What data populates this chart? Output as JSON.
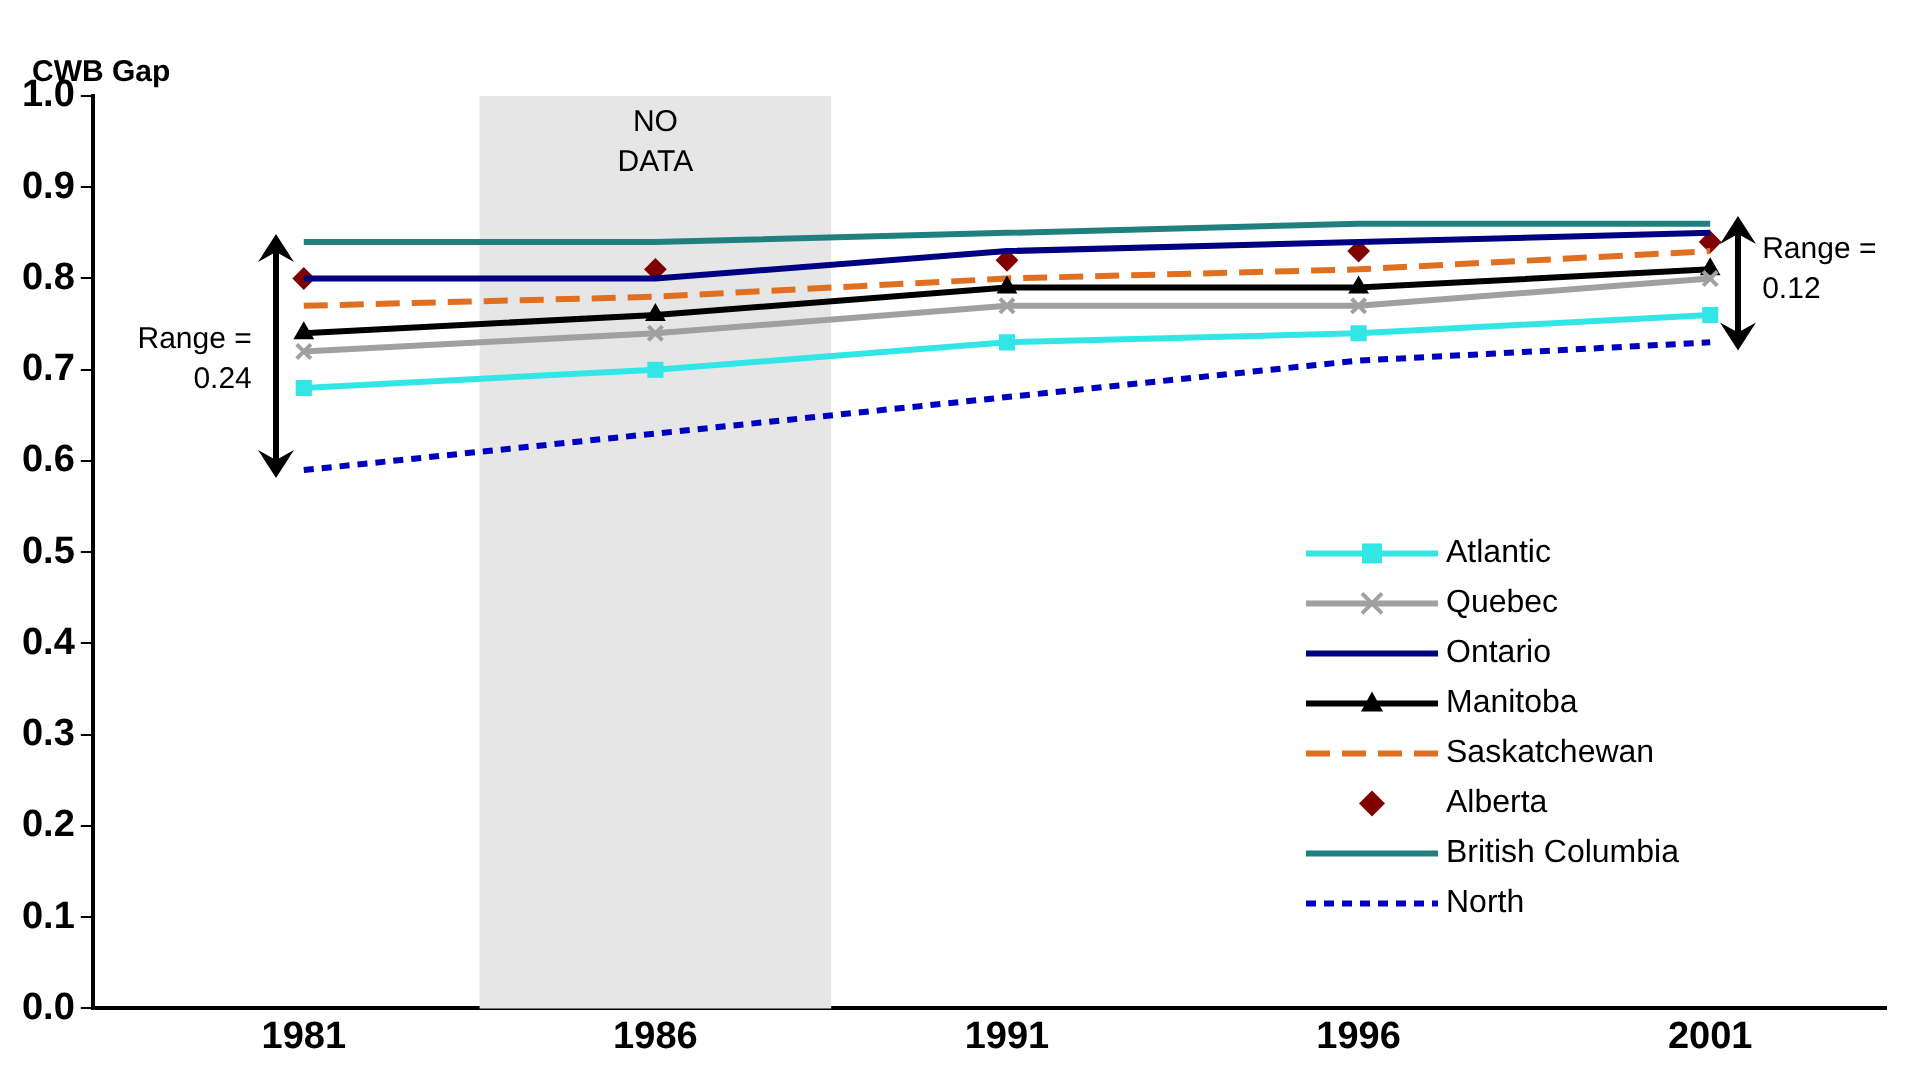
{
  "chart_data": {
    "type": "line",
    "ylabel": "CWB Gap",
    "x": [
      1981,
      1986,
      1991,
      1996,
      2001
    ],
    "xlim": [
      1978,
      2003.5
    ],
    "xticks": [
      1981,
      1986,
      1991,
      1996,
      2001
    ],
    "ylim": [
      0,
      1
    ],
    "yticks": [
      {
        "value": 0,
        "label": "0.0"
      },
      0.1,
      0.2,
      0.3,
      0.4,
      0.5,
      0.6,
      0.7,
      0.8,
      0.9,
      {
        "value": 1,
        "label": "1.0"
      }
    ],
    "grid": false,
    "legend": "bottom right",
    "series": [
      {
        "name": "Atlantic",
        "color": "#33e6e6",
        "marker": "square",
        "line_style": "solid",
        "values": [
          0.68,
          0.7,
          0.73,
          0.74,
          0.76
        ]
      },
      {
        "name": "Quebec",
        "color": "#a0a0a0",
        "marker": "cross",
        "line_style": "solid",
        "values": [
          0.72,
          0.74,
          0.77,
          0.77,
          0.8
        ]
      },
      {
        "name": "Ontario",
        "color": "#000080",
        "marker": "none",
        "line_style": "solid",
        "values": [
          0.8,
          0.8,
          0.83,
          0.84,
          0.85
        ]
      },
      {
        "name": "Manitoba",
        "color": "#000000",
        "marker": "triangle",
        "line_style": "solid",
        "values": [
          0.74,
          0.76,
          0.79,
          0.79,
          0.81
        ]
      },
      {
        "name": "Saskatchewan",
        "color": "#e07020",
        "marker": "none",
        "line_style": "dashed",
        "values": [
          0.77,
          0.78,
          0.8,
          0.81,
          0.83
        ]
      },
      {
        "name": "Alberta",
        "type": "scatter",
        "color": "#800000",
        "marker": "diamond",
        "values": [
          0.8,
          0.81,
          0.82,
          0.83,
          0.84
        ]
      },
      {
        "name": "British Columbia",
        "color": "#208080",
        "marker": "none",
        "line_style": "solid",
        "values": [
          0.84,
          0.84,
          0.85,
          0.86,
          0.86
        ]
      },
      {
        "name": "North",
        "color": "#0000c0",
        "marker": "none",
        "line_style": "dotted",
        "values": [
          0.59,
          0.63,
          0.67,
          0.71,
          0.73
        ]
      }
    ],
    "bands": [
      {
        "axis": "x",
        "from": 1983.5,
        "to": 1988.5,
        "label": "NO DATA",
        "color": "#e6e6e6"
      }
    ],
    "annotations": [
      {
        "text": "Range = 0.24",
        "x": 1981,
        "y": 0.71
      },
      {
        "text": "Range = 0.12",
        "x": 2001,
        "y": 0.81
      }
    ]
  }
}
